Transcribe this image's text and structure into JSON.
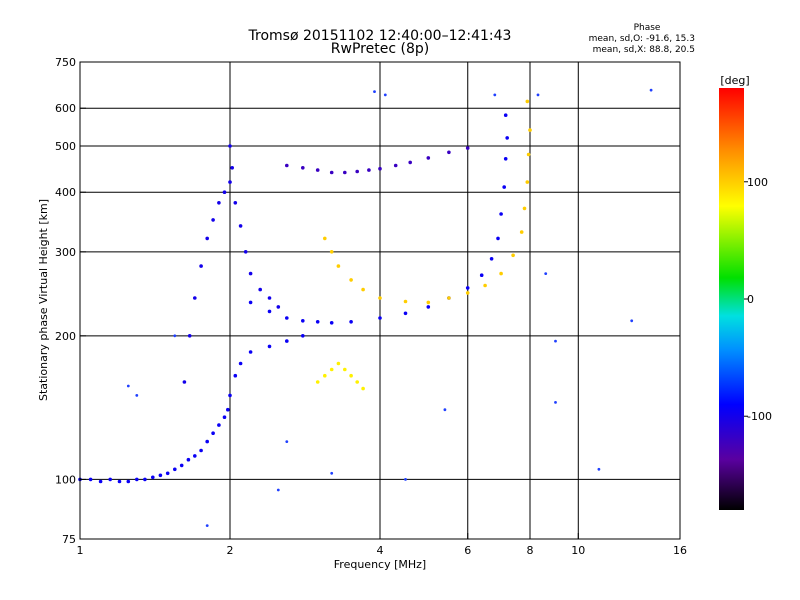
{
  "chart_data": {
    "type": "scatter",
    "title": "Tromsø 20151102 12:40:00–12:41:43",
    "subtitle": "RwPretec (8p)",
    "xlabel": "Frequency [MHz]",
    "ylabel": "Stationary phase Virtual Height [km]",
    "x_scale": "log",
    "y_scale": "log",
    "xlim": [
      1,
      16
    ],
    "ylim": [
      75,
      750
    ],
    "x_ticks": [
      1,
      2,
      4,
      6,
      8,
      10,
      16
    ],
    "x_tick_labels": [
      "1",
      "2",
      "4",
      "6",
      "8",
      "10",
      "16"
    ],
    "y_ticks": [
      75,
      100,
      200,
      300,
      400,
      500,
      600,
      750
    ],
    "y_tick_labels": [
      "75",
      "100",
      "200",
      "300",
      "400",
      "500",
      "600",
      "750"
    ],
    "grid": true,
    "stats": {
      "heading": "Phase",
      "line_o": "mean, sd,O: -91.6, 15.3",
      "line_x": "mean, sd,X: 88.8, 20.5"
    },
    "colorbar": {
      "label": "[deg]",
      "range": [
        -180,
        180
      ],
      "ticks": [
        -100,
        0,
        100
      ],
      "tick_labels": [
        "-100",
        "0",
        "100"
      ]
    },
    "series": [
      {
        "name": "",
        "phase_deg": -95,
        "points": [
          [
            1.0,
            100
          ],
          [
            1.05,
            100
          ],
          [
            1.1,
            99
          ],
          [
            1.15,
            100
          ],
          [
            1.2,
            99
          ],
          [
            1.25,
            99
          ],
          [
            1.3,
            100
          ],
          [
            1.35,
            100
          ],
          [
            1.4,
            101
          ],
          [
            1.45,
            102
          ],
          [
            1.5,
            103
          ],
          [
            1.55,
            105
          ],
          [
            1.6,
            107
          ],
          [
            1.65,
            110
          ],
          [
            1.7,
            112
          ],
          [
            1.75,
            115
          ],
          [
            1.8,
            120
          ],
          [
            1.85,
            125
          ],
          [
            1.9,
            130
          ],
          [
            1.95,
            135
          ],
          [
            1.98,
            140
          ],
          [
            2.0,
            150
          ],
          [
            2.05,
            165
          ],
          [
            2.1,
            175
          ],
          [
            2.2,
            185
          ],
          [
            2.4,
            190
          ],
          [
            2.6,
            195
          ],
          [
            2.8,
            200
          ]
        ]
      },
      {
        "name": "",
        "phase_deg": -100,
        "points": [
          [
            1.62,
            160
          ],
          [
            1.66,
            200
          ],
          [
            1.7,
            240
          ],
          [
            1.75,
            280
          ],
          [
            1.8,
            320
          ],
          [
            1.85,
            350
          ],
          [
            1.9,
            380
          ],
          [
            1.95,
            400
          ],
          [
            2.0,
            420
          ],
          [
            2.02,
            450
          ],
          [
            2.0,
            500
          ],
          [
            2.05,
            380
          ],
          [
            2.1,
            340
          ],
          [
            2.15,
            300
          ],
          [
            2.2,
            270
          ],
          [
            2.3,
            250
          ],
          [
            2.4,
            240
          ],
          [
            2.5,
            230
          ]
        ]
      },
      {
        "name": "",
        "phase_deg": -95,
        "points": [
          [
            2.2,
            235
          ],
          [
            2.4,
            225
          ],
          [
            2.6,
            218
          ],
          [
            2.8,
            215
          ],
          [
            3.0,
            214
          ],
          [
            3.2,
            213
          ],
          [
            3.5,
            214
          ],
          [
            4.0,
            218
          ],
          [
            4.5,
            223
          ],
          [
            5.0,
            230
          ],
          [
            5.5,
            240
          ],
          [
            6.0,
            252
          ],
          [
            6.4,
            268
          ],
          [
            6.7,
            290
          ],
          [
            6.9,
            320
          ],
          [
            7.0,
            360
          ],
          [
            7.1,
            410
          ],
          [
            7.15,
            470
          ],
          [
            7.2,
            520
          ],
          [
            7.15,
            580
          ]
        ]
      },
      {
        "name": "",
        "phase_deg": -120,
        "points": [
          [
            2.6,
            455
          ],
          [
            2.8,
            450
          ],
          [
            3.0,
            445
          ],
          [
            3.2,
            440
          ],
          [
            3.4,
            440
          ],
          [
            3.6,
            442
          ],
          [
            3.8,
            445
          ],
          [
            4.0,
            448
          ],
          [
            4.3,
            455
          ],
          [
            4.6,
            462
          ],
          [
            5.0,
            472
          ],
          [
            5.5,
            485
          ],
          [
            6.0,
            495
          ]
        ]
      },
      {
        "name": "",
        "phase_deg": 100,
        "points": [
          [
            3.1,
            320
          ],
          [
            3.2,
            300
          ],
          [
            3.3,
            280
          ],
          [
            3.5,
            262
          ],
          [
            3.7,
            250
          ],
          [
            4.0,
            240
          ],
          [
            4.5,
            236
          ],
          [
            5.0,
            235
          ],
          [
            5.5,
            240
          ],
          [
            6.0,
            246
          ],
          [
            6.5,
            255
          ],
          [
            7.0,
            270
          ],
          [
            7.4,
            295
          ],
          [
            7.7,
            330
          ],
          [
            7.8,
            370
          ],
          [
            7.9,
            420
          ],
          [
            7.95,
            480
          ],
          [
            8.0,
            540
          ],
          [
            7.9,
            620
          ]
        ]
      },
      {
        "name": "",
        "phase_deg": 85,
        "points": [
          [
            3.0,
            160
          ],
          [
            3.1,
            165
          ],
          [
            3.2,
            170
          ],
          [
            3.3,
            175
          ],
          [
            3.4,
            170
          ],
          [
            3.5,
            165
          ],
          [
            3.6,
            160
          ],
          [
            3.7,
            155
          ]
        ]
      }
    ],
    "scattered_points": [
      [
        1.25,
        157
      ],
      [
        1.3,
        150
      ],
      [
        1.55,
        200
      ],
      [
        1.8,
        80
      ],
      [
        2.6,
        120
      ],
      [
        3.2,
        103
      ],
      [
        3.9,
        650
      ],
      [
        4.1,
        640
      ],
      [
        4.5,
        100
      ],
      [
        6.8,
        640
      ],
      [
        8.3,
        640
      ],
      [
        8.6,
        270
      ],
      [
        9.0,
        195
      ],
      [
        9.0,
        145
      ],
      [
        11.0,
        105
      ],
      [
        12.8,
        215
      ],
      [
        14.0,
        655
      ],
      [
        5.4,
        140
      ],
      [
        2.5,
        95
      ]
    ]
  }
}
